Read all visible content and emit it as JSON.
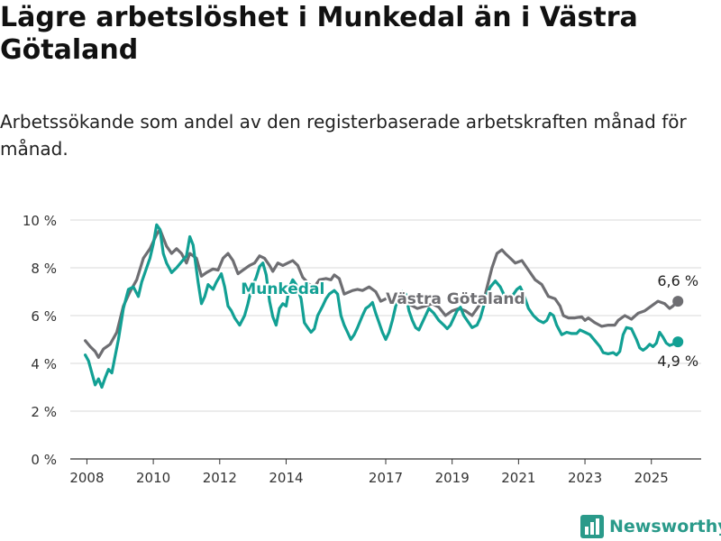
{
  "page": {
    "title": "Lägre arbetslöshet i Munkedal än i Västra Götaland",
    "subtitle": "Arbetssökande som andel av den registerbaserade arbetskraften månad för månad.",
    "brand": "Newsworthy"
  },
  "colors": {
    "munkedal": "#12a094",
    "vastra_gotaland": "#6e6e72",
    "grid": "#d9d9d9",
    "axis": "#333333",
    "brand": "#2a9a8a"
  },
  "chart_data": {
    "type": "line",
    "ylim": [
      0,
      10
    ],
    "yticks": [
      0,
      2,
      4,
      6,
      8,
      10
    ],
    "ytick_labels": [
      "0 %",
      "2 %",
      "4 %",
      "6 %",
      "8 %",
      "10 %"
    ],
    "xlim": [
      2007.5,
      2026.5
    ],
    "xticks": [
      2008,
      2010,
      2012,
      2014,
      2017,
      2019,
      2021,
      2023,
      2025
    ],
    "xtick_labels": [
      "2008",
      "2010",
      "2012",
      "2014",
      "2017",
      "2019",
      "2021",
      "2023",
      "2025"
    ],
    "grid": true,
    "series": [
      {
        "name": "Västra Götaland",
        "key": "vastra_gotaland",
        "end_label": "6,6 %",
        "points": [
          [
            2007.95,
            4.95
          ],
          [
            2008.1,
            4.7
          ],
          [
            2008.25,
            4.5
          ],
          [
            2008.35,
            4.25
          ],
          [
            2008.5,
            4.6
          ],
          [
            2008.7,
            4.8
          ],
          [
            2008.9,
            5.3
          ],
          [
            2009.1,
            6.4
          ],
          [
            2009.3,
            7.0
          ],
          [
            2009.5,
            7.5
          ],
          [
            2009.7,
            8.4
          ],
          [
            2009.9,
            8.8
          ],
          [
            2010.1,
            9.4
          ],
          [
            2010.2,
            9.6
          ],
          [
            2010.4,
            8.9
          ],
          [
            2010.55,
            8.6
          ],
          [
            2010.7,
            8.8
          ],
          [
            2010.85,
            8.6
          ],
          [
            2011.0,
            8.2
          ],
          [
            2011.1,
            8.6
          ],
          [
            2011.3,
            8.4
          ],
          [
            2011.45,
            7.65
          ],
          [
            2011.6,
            7.8
          ],
          [
            2011.8,
            7.95
          ],
          [
            2011.95,
            7.9
          ],
          [
            2012.1,
            8.4
          ],
          [
            2012.25,
            8.6
          ],
          [
            2012.4,
            8.3
          ],
          [
            2012.55,
            7.75
          ],
          [
            2012.7,
            7.9
          ],
          [
            2012.9,
            8.1
          ],
          [
            2013.05,
            8.2
          ],
          [
            2013.2,
            8.5
          ],
          [
            2013.35,
            8.4
          ],
          [
            2013.5,
            8.1
          ],
          [
            2013.6,
            7.85
          ],
          [
            2013.75,
            8.2
          ],
          [
            2013.9,
            8.1
          ],
          [
            2014.05,
            8.2
          ],
          [
            2014.2,
            8.3
          ],
          [
            2014.35,
            8.1
          ],
          [
            2014.5,
            7.6
          ],
          [
            2014.7,
            7.3
          ],
          [
            2014.85,
            7.2
          ],
          [
            2015.0,
            7.5
          ],
          [
            2015.2,
            7.55
          ],
          [
            2015.35,
            7.5
          ],
          [
            2015.45,
            7.7
          ],
          [
            2015.6,
            7.55
          ],
          [
            2015.75,
            6.9
          ],
          [
            2016.0,
            7.05
          ],
          [
            2016.15,
            7.1
          ],
          [
            2016.3,
            7.05
          ],
          [
            2016.5,
            7.2
          ],
          [
            2016.7,
            7.0
          ],
          [
            2016.85,
            6.6
          ],
          [
            2017.0,
            6.7
          ],
          [
            2017.25,
            6.8
          ],
          [
            2017.4,
            6.9
          ],
          [
            2017.6,
            6.8
          ],
          [
            2017.75,
            6.45
          ],
          [
            2017.95,
            6.3
          ],
          [
            2018.2,
            6.4
          ],
          [
            2018.4,
            6.5
          ],
          [
            2018.6,
            6.35
          ],
          [
            2018.8,
            6.0
          ],
          [
            2019.0,
            6.2
          ],
          [
            2019.2,
            6.3
          ],
          [
            2019.4,
            6.2
          ],
          [
            2019.6,
            6.0
          ],
          [
            2019.8,
            6.4
          ],
          [
            2020.0,
            6.9
          ],
          [
            2020.2,
            8.0
          ],
          [
            2020.35,
            8.6
          ],
          [
            2020.5,
            8.75
          ],
          [
            2020.6,
            8.6
          ],
          [
            2020.75,
            8.4
          ],
          [
            2020.9,
            8.2
          ],
          [
            2021.1,
            8.3
          ],
          [
            2021.3,
            7.9
          ],
          [
            2021.5,
            7.5
          ],
          [
            2021.7,
            7.3
          ],
          [
            2021.9,
            6.8
          ],
          [
            2022.1,
            6.7
          ],
          [
            2022.25,
            6.4
          ],
          [
            2022.35,
            6.0
          ],
          [
            2022.5,
            5.9
          ],
          [
            2022.7,
            5.9
          ],
          [
            2022.9,
            5.95
          ],
          [
            2023.0,
            5.8
          ],
          [
            2023.1,
            5.9
          ],
          [
            2023.3,
            5.7
          ],
          [
            2023.5,
            5.55
          ],
          [
            2023.7,
            5.6
          ],
          [
            2023.9,
            5.6
          ],
          [
            2024.0,
            5.8
          ],
          [
            2024.2,
            6.0
          ],
          [
            2024.4,
            5.85
          ],
          [
            2024.6,
            6.1
          ],
          [
            2024.8,
            6.2
          ],
          [
            2025.0,
            6.4
          ],
          [
            2025.2,
            6.6
          ],
          [
            2025.4,
            6.5
          ],
          [
            2025.55,
            6.3
          ],
          [
            2025.65,
            6.4
          ],
          [
            2025.8,
            6.6
          ]
        ]
      },
      {
        "name": "Munkedal",
        "key": "munkedal",
        "end_label": "4,9 %",
        "points": [
          [
            2007.95,
            4.35
          ],
          [
            2008.05,
            4.1
          ],
          [
            2008.15,
            3.6
          ],
          [
            2008.25,
            3.1
          ],
          [
            2008.35,
            3.35
          ],
          [
            2008.45,
            3.0
          ],
          [
            2008.55,
            3.4
          ],
          [
            2008.65,
            3.75
          ],
          [
            2008.75,
            3.6
          ],
          [
            2008.85,
            4.3
          ],
          [
            2008.95,
            5.0
          ],
          [
            2009.1,
            6.3
          ],
          [
            2009.25,
            7.1
          ],
          [
            2009.4,
            7.2
          ],
          [
            2009.55,
            6.8
          ],
          [
            2009.65,
            7.4
          ],
          [
            2009.8,
            8.0
          ],
          [
            2009.9,
            8.4
          ],
          [
            2010.0,
            9.0
          ],
          [
            2010.1,
            9.8
          ],
          [
            2010.2,
            9.6
          ],
          [
            2010.3,
            8.6
          ],
          [
            2010.4,
            8.2
          ],
          [
            2010.55,
            7.8
          ],
          [
            2010.7,
            8.0
          ],
          [
            2010.85,
            8.25
          ],
          [
            2011.0,
            8.5
          ],
          [
            2011.1,
            9.3
          ],
          [
            2011.2,
            8.95
          ],
          [
            2011.35,
            7.4
          ],
          [
            2011.45,
            6.5
          ],
          [
            2011.55,
            6.8
          ],
          [
            2011.65,
            7.3
          ],
          [
            2011.8,
            7.1
          ],
          [
            2011.9,
            7.4
          ],
          [
            2012.05,
            7.75
          ],
          [
            2012.15,
            7.2
          ],
          [
            2012.25,
            6.4
          ],
          [
            2012.35,
            6.2
          ],
          [
            2012.45,
            5.9
          ],
          [
            2012.6,
            5.6
          ],
          [
            2012.75,
            6.0
          ],
          [
            2012.85,
            6.5
          ],
          [
            2012.95,
            7.1
          ],
          [
            2013.1,
            7.6
          ],
          [
            2013.2,
            8.05
          ],
          [
            2013.3,
            8.2
          ],
          [
            2013.4,
            7.7
          ],
          [
            2013.5,
            6.6
          ],
          [
            2013.6,
            5.95
          ],
          [
            2013.7,
            5.6
          ],
          [
            2013.8,
            6.3
          ],
          [
            2013.9,
            6.5
          ],
          [
            2014.0,
            6.4
          ],
          [
            2014.1,
            7.2
          ],
          [
            2014.2,
            7.5
          ],
          [
            2014.3,
            7.3
          ],
          [
            2014.45,
            6.7
          ],
          [
            2014.55,
            5.7
          ],
          [
            2014.65,
            5.5
          ],
          [
            2014.75,
            5.3
          ],
          [
            2014.85,
            5.45
          ],
          [
            2014.95,
            6.0
          ],
          [
            2015.1,
            6.4
          ],
          [
            2015.2,
            6.7
          ],
          [
            2015.3,
            6.9
          ],
          [
            2015.45,
            7.05
          ],
          [
            2015.55,
            6.9
          ],
          [
            2015.65,
            6.0
          ],
          [
            2015.75,
            5.6
          ],
          [
            2015.85,
            5.3
          ],
          [
            2015.95,
            5.0
          ],
          [
            2016.05,
            5.2
          ],
          [
            2016.15,
            5.5
          ],
          [
            2016.3,
            6.0
          ],
          [
            2016.4,
            6.3
          ],
          [
            2016.5,
            6.4
          ],
          [
            2016.6,
            6.55
          ],
          [
            2016.7,
            6.1
          ],
          [
            2016.8,
            5.7
          ],
          [
            2016.9,
            5.3
          ],
          [
            2017.0,
            5.0
          ],
          [
            2017.1,
            5.3
          ],
          [
            2017.2,
            5.8
          ],
          [
            2017.3,
            6.4
          ],
          [
            2017.4,
            6.8
          ],
          [
            2017.5,
            7.0
          ],
          [
            2017.6,
            6.9
          ],
          [
            2017.7,
            6.2
          ],
          [
            2017.8,
            5.8
          ],
          [
            2017.9,
            5.5
          ],
          [
            2018.0,
            5.4
          ],
          [
            2018.1,
            5.7
          ],
          [
            2018.2,
            6.0
          ],
          [
            2018.3,
            6.3
          ],
          [
            2018.45,
            6.1
          ],
          [
            2018.6,
            5.8
          ],
          [
            2018.75,
            5.6
          ],
          [
            2018.85,
            5.45
          ],
          [
            2018.95,
            5.6
          ],
          [
            2019.05,
            5.9
          ],
          [
            2019.15,
            6.2
          ],
          [
            2019.25,
            6.35
          ],
          [
            2019.35,
            6.0
          ],
          [
            2019.5,
            5.7
          ],
          [
            2019.6,
            5.5
          ],
          [
            2019.75,
            5.6
          ],
          [
            2019.85,
            5.9
          ],
          [
            2019.95,
            6.4
          ],
          [
            2020.05,
            6.9
          ],
          [
            2020.15,
            7.2
          ],
          [
            2020.3,
            7.45
          ],
          [
            2020.45,
            7.2
          ],
          [
            2020.55,
            6.9
          ],
          [
            2020.65,
            6.6
          ],
          [
            2020.8,
            6.8
          ],
          [
            2020.95,
            7.1
          ],
          [
            2021.05,
            7.2
          ],
          [
            2021.15,
            6.9
          ],
          [
            2021.3,
            6.3
          ],
          [
            2021.45,
            6.0
          ],
          [
            2021.6,
            5.8
          ],
          [
            2021.75,
            5.7
          ],
          [
            2021.85,
            5.8
          ],
          [
            2021.95,
            6.1
          ],
          [
            2022.05,
            6.0
          ],
          [
            2022.15,
            5.6
          ],
          [
            2022.3,
            5.2
          ],
          [
            2022.45,
            5.3
          ],
          [
            2022.6,
            5.25
          ],
          [
            2022.75,
            5.25
          ],
          [
            2022.85,
            5.4
          ],
          [
            2023.0,
            5.3
          ],
          [
            2023.15,
            5.2
          ],
          [
            2023.3,
            4.95
          ],
          [
            2023.45,
            4.7
          ],
          [
            2023.55,
            4.45
          ],
          [
            2023.7,
            4.4
          ],
          [
            2023.85,
            4.45
          ],
          [
            2023.95,
            4.35
          ],
          [
            2024.05,
            4.5
          ],
          [
            2024.15,
            5.2
          ],
          [
            2024.25,
            5.5
          ],
          [
            2024.4,
            5.45
          ],
          [
            2024.55,
            5.0
          ],
          [
            2024.65,
            4.65
          ],
          [
            2024.75,
            4.55
          ],
          [
            2024.85,
            4.65
          ],
          [
            2024.95,
            4.8
          ],
          [
            2025.05,
            4.7
          ],
          [
            2025.15,
            4.85
          ],
          [
            2025.25,
            5.3
          ],
          [
            2025.35,
            5.1
          ],
          [
            2025.45,
            4.85
          ],
          [
            2025.55,
            4.75
          ],
          [
            2025.65,
            4.8
          ],
          [
            2025.8,
            4.9
          ]
        ]
      }
    ],
    "inline_labels": [
      {
        "series": "munkedal",
        "text": "Munkedal",
        "x": 2013.9,
        "y": 6.9
      },
      {
        "series": "vastra_gotaland",
        "text": "Västra Götaland",
        "x": 2019.1,
        "y": 6.5
      }
    ]
  }
}
